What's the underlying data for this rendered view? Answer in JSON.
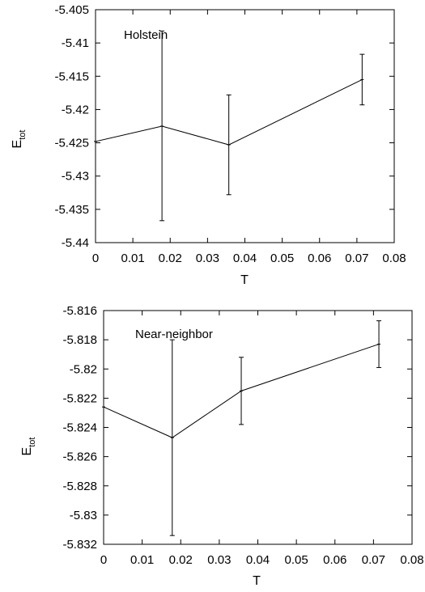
{
  "chart_data": [
    {
      "type": "line",
      "annotation": "Holstein",
      "xlabel": "T",
      "ylabel_main": "E",
      "ylabel_sub": "tot",
      "xlim": [
        0,
        0.08
      ],
      "ylim": [
        -5.44,
        -5.405
      ],
      "xticks": [
        0,
        0.01,
        0.02,
        0.03,
        0.04,
        0.05,
        0.06,
        0.07,
        0.08
      ],
      "xtick_labels": [
        "0",
        "0.01",
        "0.02",
        "0.03",
        "0.04",
        "0.05",
        "0.06",
        "0.07",
        "0.08"
      ],
      "yticks": [
        -5.44,
        -5.435,
        -5.43,
        -5.425,
        -5.42,
        -5.415,
        -5.41,
        -5.405
      ],
      "ytick_labels": [
        "-5.44",
        "-5.435",
        "-5.43",
        "-5.425",
        "-5.42",
        "-5.415",
        "-5.41",
        "-5.405"
      ],
      "grid": false,
      "series": [
        {
          "x": [
            0,
            0.0178,
            0.0357,
            0.0714
          ],
          "y": [
            -5.4248,
            -5.4225,
            -5.4253,
            -5.4155
          ],
          "err_low": [
            null,
            -5.4367,
            -5.4328,
            -5.4193
          ],
          "err_high": [
            null,
            -5.4082,
            -5.4178,
            -5.4117
          ]
        }
      ]
    },
    {
      "type": "line",
      "annotation": "Near-neighbor",
      "xlabel": "T",
      "ylabel_main": "E",
      "ylabel_sub": "tot",
      "xlim": [
        0,
        0.08
      ],
      "ylim": [
        -5.832,
        -5.816
      ],
      "xticks": [
        0,
        0.01,
        0.02,
        0.03,
        0.04,
        0.05,
        0.06,
        0.07,
        0.08
      ],
      "xtick_labels": [
        "0",
        "0.01",
        "0.02",
        "0.03",
        "0.04",
        "0.05",
        "0.06",
        "0.07",
        "0.08"
      ],
      "yticks": [
        -5.832,
        -5.83,
        -5.828,
        -5.826,
        -5.824,
        -5.822,
        -5.82,
        -5.818,
        -5.816
      ],
      "ytick_labels": [
        "-5.832",
        "-5.83",
        "-5.828",
        "-5.826",
        "-5.824",
        "-5.822",
        "-5.82",
        "-5.818",
        "-5.816"
      ],
      "grid": false,
      "series": [
        {
          "x": [
            0,
            0.0178,
            0.0357,
            0.0714
          ],
          "y": [
            -5.8226,
            -5.8247,
            -5.8215,
            -5.8183
          ],
          "err_low": [
            null,
            -5.8314,
            -5.8238,
            -5.8199
          ],
          "err_high": [
            null,
            -5.818,
            -5.8192,
            -5.8167
          ]
        }
      ]
    }
  ]
}
